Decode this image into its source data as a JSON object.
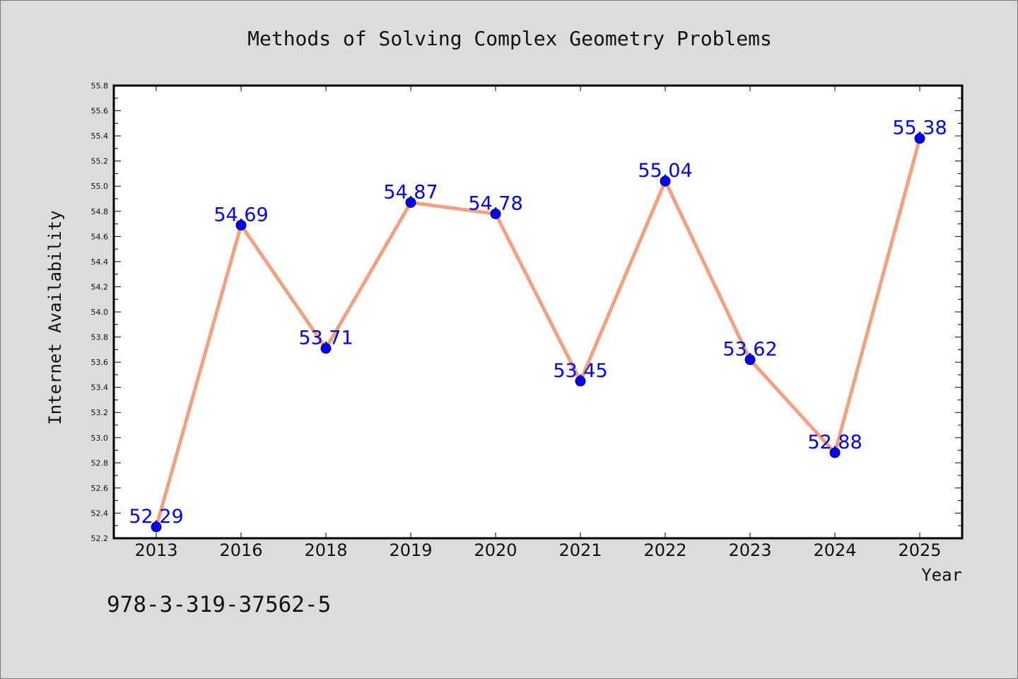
{
  "chart_data": {
    "type": "line",
    "title": "Methods of Solving Complex Geometry Problems",
    "xlabel": "Year",
    "ylabel": "Internet Availability",
    "categories": [
      "2013",
      "2016",
      "2018",
      "2019",
      "2020",
      "2021",
      "2022",
      "2023",
      "2024",
      "2025"
    ],
    "series": [
      {
        "values": [
          52.29,
          54.69,
          53.71,
          54.87,
          54.78,
          53.45,
          55.04,
          53.62,
          52.88,
          55.38
        ],
        "data_labels": [
          "52.29",
          "54.69",
          "53.71",
          "54.87",
          "54.78",
          "53.45",
          "55.04",
          "53.62",
          "52.88",
          "55.38"
        ]
      }
    ],
    "ylim": [
      52.2,
      55.8
    ],
    "yticks": [
      "52.2",
      "52.4",
      "52.6",
      "52.8",
      "53.0",
      "53.2",
      "53.4",
      "53.6",
      "53.8",
      "54.0",
      "54.2",
      "54.4",
      "54.6",
      "54.8",
      "55.0",
      "55.2",
      "55.4",
      "55.6",
      "55.8"
    ],
    "grid": false,
    "legend": "none",
    "colors": {
      "line": "#f4a07e",
      "marker": "#0000ff",
      "marker_edge": "#000033",
      "data_label": "#0000ff",
      "background": "#dcdcdc",
      "plot_background": "#ffffff"
    }
  },
  "footer": {
    "isbn": "978-3-319-37562-5"
  }
}
